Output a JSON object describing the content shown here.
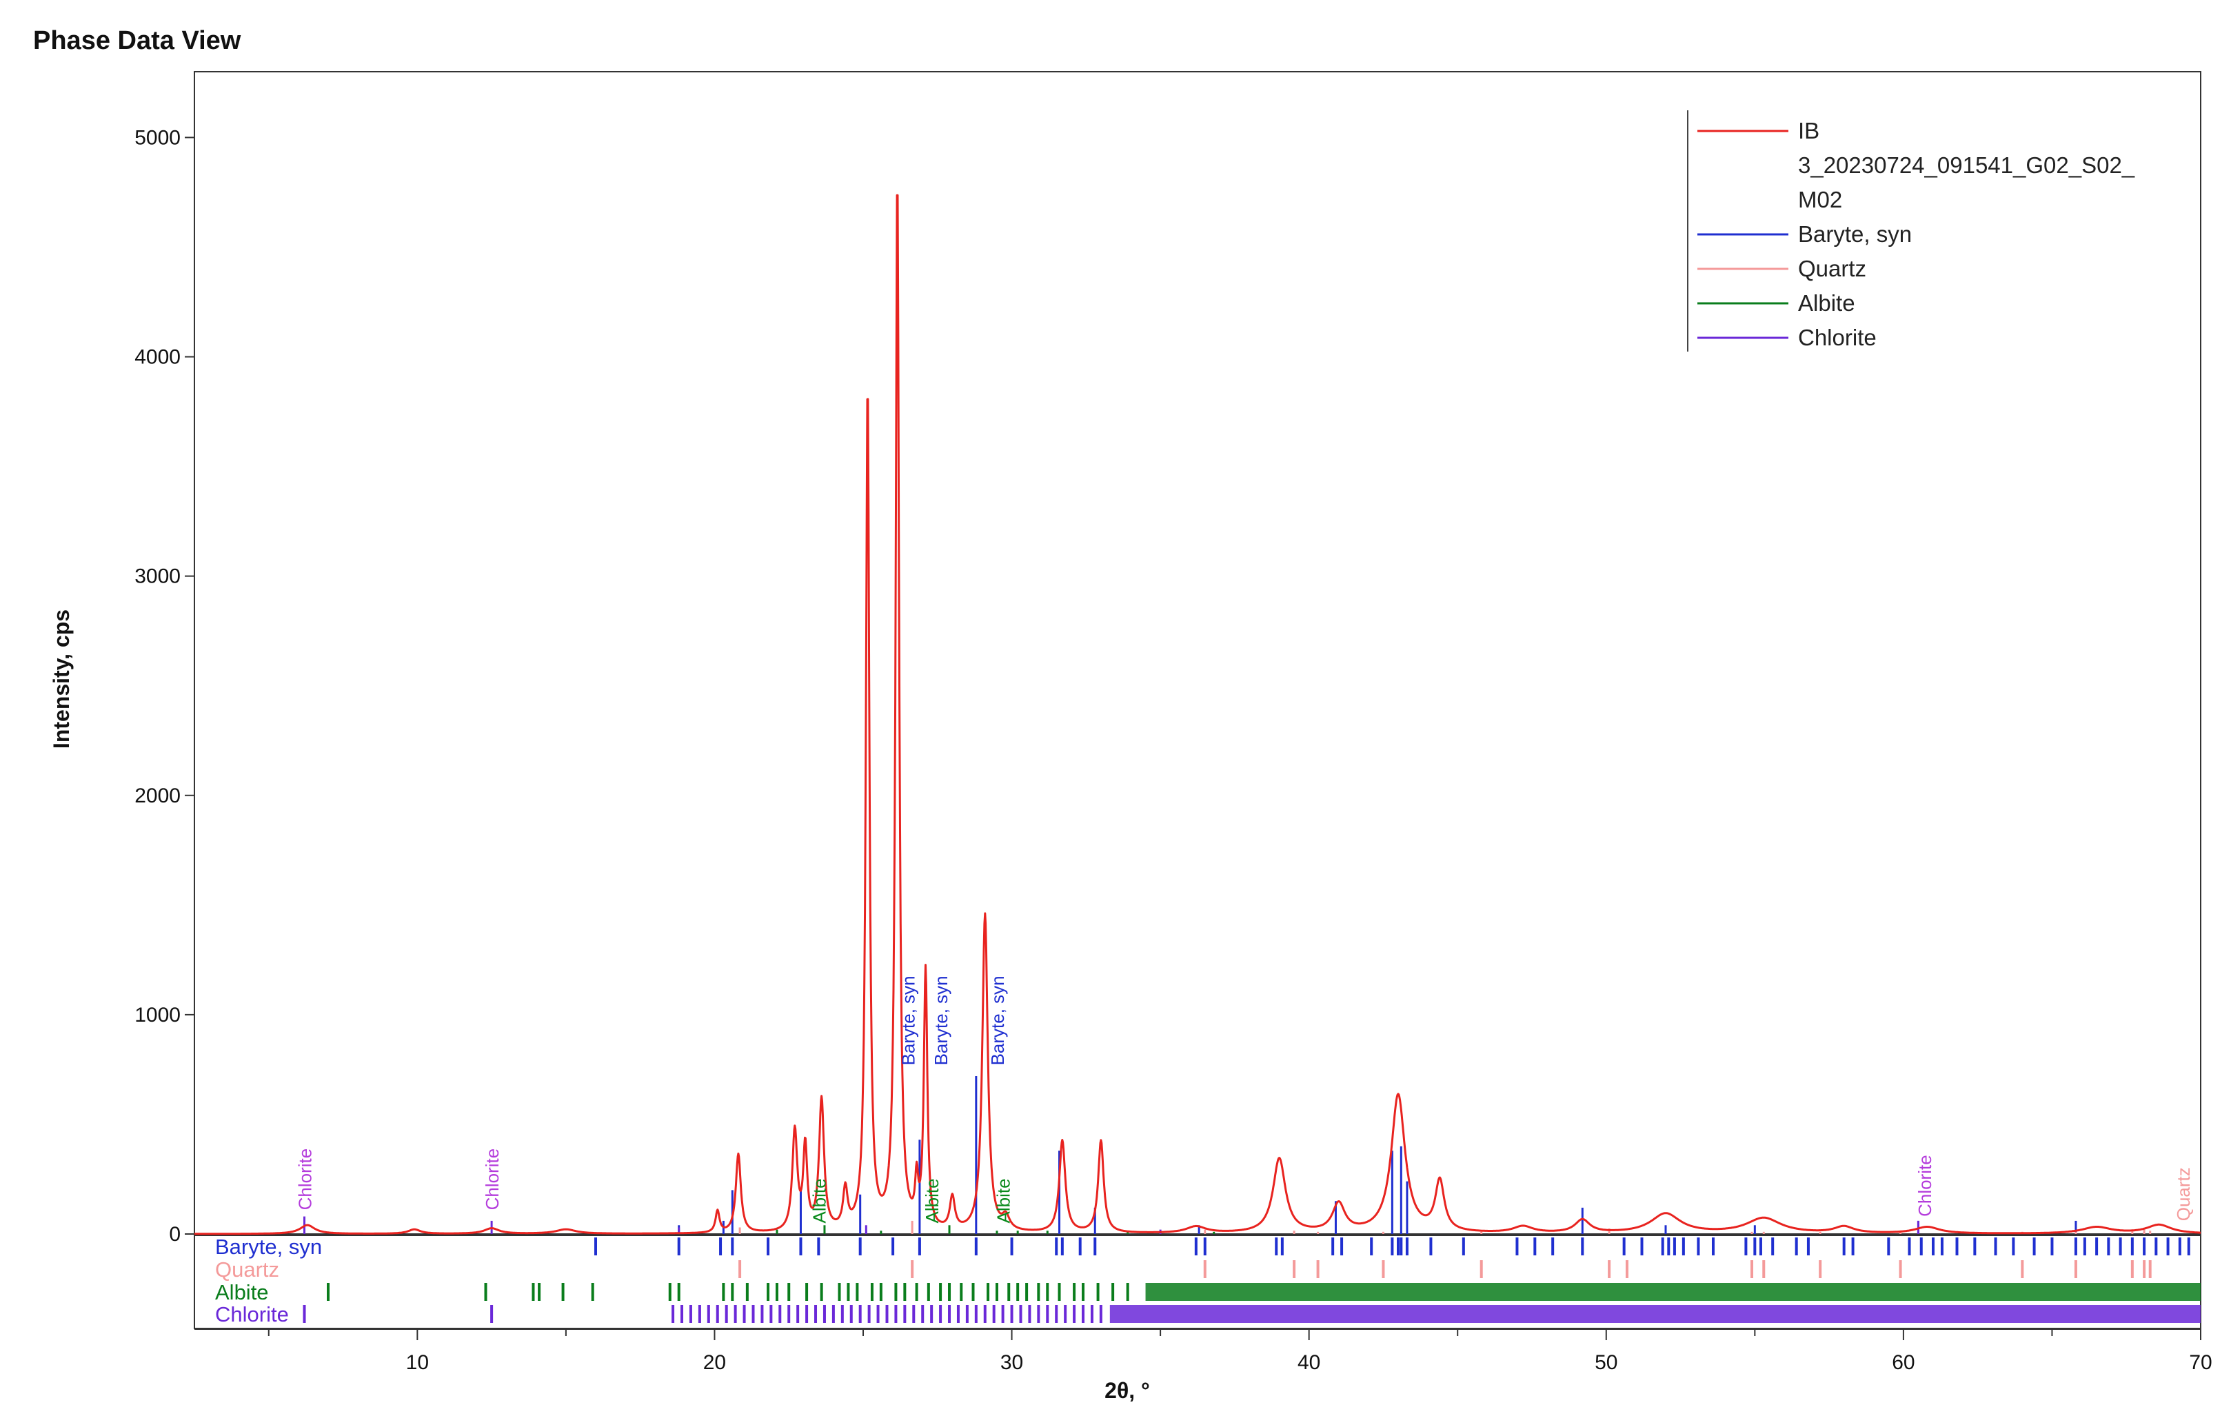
{
  "window": {
    "title": "Phase Data View"
  },
  "chart_data": {
    "type": "line",
    "title": "",
    "xlabel": "2θ, °",
    "ylabel": "Intensity, cps",
    "xlim": [
      2.5,
      70
    ],
    "ylim": [
      0,
      5300
    ],
    "x_ticks": [
      10,
      20,
      30,
      40,
      50,
      60,
      70
    ],
    "y_ticks": [
      0,
      1000,
      2000,
      3000,
      4000,
      5000
    ],
    "grid": false,
    "legend_position": "top-right",
    "legend": [
      {
        "name": "IB 3_20230724_091541_G02_S02_M02",
        "lines": [
          "IB",
          "3_20230724_091541_G02_S02_",
          "M02"
        ],
        "color": "#e8231f"
      },
      {
        "name": "Baryte, syn",
        "lines": [
          "Baryte, syn"
        ],
        "color": "#1f2fd0"
      },
      {
        "name": "Quartz",
        "lines": [
          "Quartz"
        ],
        "color": "#f49a9a"
      },
      {
        "name": "Albite",
        "lines": [
          "Albite"
        ],
        "color": "#0a7d1c"
      },
      {
        "name": "Chlorite",
        "lines": [
          "Chlorite"
        ],
        "color": "#6a28d8"
      }
    ],
    "pattern": {
      "name": "IB 3_20230724_091541_G02_S02_M02",
      "color": "#e8231f",
      "peaks": [
        [
          6.3,
          40,
          0.3
        ],
        [
          9.9,
          20,
          0.25
        ],
        [
          12.5,
          25,
          0.3
        ],
        [
          15.0,
          20,
          0.4
        ],
        [
          20.1,
          100,
          0.08
        ],
        [
          20.8,
          360,
          0.1
        ],
        [
          22.7,
          460,
          0.1
        ],
        [
          23.05,
          380,
          0.08
        ],
        [
          23.6,
          600,
          0.1
        ],
        [
          24.4,
          180,
          0.09
        ],
        [
          25.15,
          3850,
          0.07
        ],
        [
          26.15,
          4800,
          0.07
        ],
        [
          26.8,
          200,
          0.06
        ],
        [
          27.1,
          1180,
          0.07
        ],
        [
          28.0,
          150,
          0.1
        ],
        [
          29.1,
          1450,
          0.11
        ],
        [
          29.8,
          60,
          0.15
        ],
        [
          31.7,
          420,
          0.12
        ],
        [
          33.0,
          420,
          0.11
        ],
        [
          36.2,
          30,
          0.4
        ],
        [
          39.0,
          340,
          0.25
        ],
        [
          41.0,
          130,
          0.25
        ],
        [
          43.0,
          630,
          0.28
        ],
        [
          44.4,
          230,
          0.18
        ],
        [
          47.2,
          30,
          0.4
        ],
        [
          49.2,
          60,
          0.3
        ],
        [
          52.0,
          90,
          0.6
        ],
        [
          55.3,
          70,
          0.7
        ],
        [
          58.0,
          30,
          0.4
        ],
        [
          60.8,
          30,
          0.5
        ],
        [
          66.5,
          30,
          0.6
        ],
        [
          68.6,
          40,
          0.5
        ]
      ]
    },
    "stick_series": [
      {
        "name": "Baryte, syn",
        "label": "Baryte, syn",
        "color": "#1f2fd0",
        "sticks": [
          [
            18.8,
            40
          ],
          [
            20.3,
            60
          ],
          [
            20.6,
            200
          ],
          [
            22.9,
            200
          ],
          [
            24.9,
            180
          ],
          [
            26.9,
            430
          ],
          [
            28.8,
            720
          ],
          [
            31.6,
            380
          ],
          [
            32.8,
            120
          ],
          [
            36.3,
            40
          ],
          [
            40.9,
            150
          ],
          [
            42.8,
            380
          ],
          [
            43.1,
            400
          ],
          [
            43.3,
            240
          ],
          [
            49.2,
            120
          ],
          [
            52.0,
            40
          ],
          [
            55.0,
            40
          ],
          [
            60.5,
            60
          ],
          [
            65.8,
            60
          ]
        ],
        "ref_lines": [
          16.0,
          18.8,
          20.2,
          20.6,
          21.8,
          22.9,
          23.5,
          24.9,
          26.0,
          26.9,
          28.8,
          30.0,
          31.5,
          31.7,
          32.3,
          32.8,
          36.2,
          36.5,
          38.9,
          39.1,
          40.8,
          41.1,
          42.1,
          42.8,
          43.0,
          43.1,
          43.3,
          44.1,
          45.2,
          47.0,
          47.6,
          48.2,
          49.2,
          50.6,
          51.2,
          51.9,
          52.1,
          52.3,
          52.6,
          53.1,
          53.6,
          54.7,
          55.0,
          55.2,
          55.6,
          56.4,
          56.8,
          58.0,
          58.3,
          59.5,
          60.2,
          60.6,
          61.0,
          61.3,
          61.8,
          62.4,
          63.1,
          63.7,
          64.4,
          65.0,
          65.8,
          66.1,
          66.5,
          66.9,
          67.3,
          67.7,
          68.1,
          68.5,
          68.9,
          69.3,
          69.6
        ]
      },
      {
        "name": "Quartz",
        "label": "Quartz",
        "color": "#f49a9a",
        "sticks": [
          [
            20.85,
            30
          ],
          [
            26.65,
            60
          ],
          [
            36.5,
            20
          ],
          [
            39.5,
            15
          ],
          [
            40.3,
            10
          ],
          [
            42.5,
            10
          ],
          [
            45.8,
            10
          ],
          [
            50.1,
            25
          ],
          [
            54.9,
            10
          ],
          [
            55.3,
            10
          ],
          [
            57.2,
            10
          ],
          [
            59.9,
            15
          ],
          [
            64.0,
            10
          ],
          [
            65.8,
            10
          ],
          [
            67.7,
            15
          ],
          [
            68.1,
            20
          ],
          [
            68.3,
            15
          ]
        ],
        "ref_lines": [
          20.85,
          26.65,
          36.5,
          39.5,
          40.3,
          42.5,
          45.8,
          50.1,
          50.7,
          54.9,
          55.3,
          57.2,
          59.9,
          64.0,
          65.8,
          67.7,
          68.1,
          68.3
        ]
      },
      {
        "name": "Albite",
        "label": "Albite",
        "color": "#0a7d1c",
        "sticks": [
          [
            22.1,
            20
          ],
          [
            23.7,
            40
          ],
          [
            25.6,
            15
          ],
          [
            27.9,
            40
          ],
          [
            29.5,
            15
          ],
          [
            30.2,
            15
          ],
          [
            31.2,
            15
          ],
          [
            33.9,
            15
          ],
          [
            35.0,
            10
          ],
          [
            36.8,
            10
          ]
        ],
        "ref_lines": [
          7.0,
          12.3,
          13.9,
          14.1,
          14.9,
          15.9,
          18.5,
          18.8,
          20.3,
          20.6,
          21.1,
          21.8,
          22.1,
          22.5,
          23.1,
          23.6,
          24.2,
          24.5,
          24.8,
          25.3,
          25.6,
          26.1,
          26.4,
          26.8,
          27.2,
          27.6,
          27.9,
          28.3,
          28.7,
          29.2,
          29.5,
          29.9,
          30.2,
          30.5,
          30.9,
          31.2,
          31.6,
          32.1,
          32.4,
          32.9,
          33.4,
          33.9
        ],
        "ref_band": [
          34.5,
          70
        ]
      },
      {
        "name": "Chlorite",
        "label": "Chlorite",
        "color": "#6a28d8",
        "sticks": [
          [
            6.2,
            80
          ],
          [
            12.5,
            60
          ],
          [
            18.8,
            30
          ],
          [
            25.1,
            40
          ],
          [
            35.0,
            20
          ],
          [
            60.5,
            60
          ]
        ],
        "ref_lines": [
          6.2,
          12.5,
          18.6,
          18.9,
          19.2,
          19.5,
          19.8,
          20.1,
          20.4,
          20.7,
          21.0,
          21.3,
          21.6,
          21.9,
          22.2,
          22.5,
          22.8,
          23.1,
          23.4,
          23.7,
          24.0,
          24.3,
          24.6,
          24.9,
          25.2,
          25.5,
          25.8,
          26.1,
          26.4,
          26.7,
          27.0,
          27.3,
          27.6,
          27.9,
          28.2,
          28.5,
          28.8,
          29.1,
          29.4,
          29.7,
          30.0,
          30.3,
          30.6,
          30.9,
          31.2,
          31.5,
          31.8,
          32.1,
          32.4,
          32.7,
          33.0
        ],
        "ref_band": [
          33.3,
          70
        ]
      }
    ],
    "peak_annotations": [
      {
        "text": "Chlorite",
        "x": 6.2,
        "y": 90,
        "color": "#b43cdc"
      },
      {
        "text": "Chlorite",
        "x": 12.5,
        "y": 90,
        "color": "#b43cdc"
      },
      {
        "text": "Albite",
        "x": 23.5,
        "y": 30,
        "color": "#0a8a1c"
      },
      {
        "text": "Baryte, syn",
        "x": 26.5,
        "y": 750,
        "color": "#1f2fd0"
      },
      {
        "text": "Albite",
        "x": 27.3,
        "y": 30,
        "color": "#0a8a1c"
      },
      {
        "text": "Baryte, syn",
        "x": 27.6,
        "y": 750,
        "color": "#1f2fd0"
      },
      {
        "text": "Albite",
        "x": 29.7,
        "y": 30,
        "color": "#0a8a1c"
      },
      {
        "text": "Baryte, syn",
        "x": 29.5,
        "y": 750,
        "color": "#1f2fd0"
      },
      {
        "text": "Chlorite",
        "x": 60.7,
        "y": 60,
        "color": "#b43cdc"
      },
      {
        "text": "Quartz",
        "x": 69.4,
        "y": 40,
        "color": "#f49a9a"
      }
    ]
  }
}
